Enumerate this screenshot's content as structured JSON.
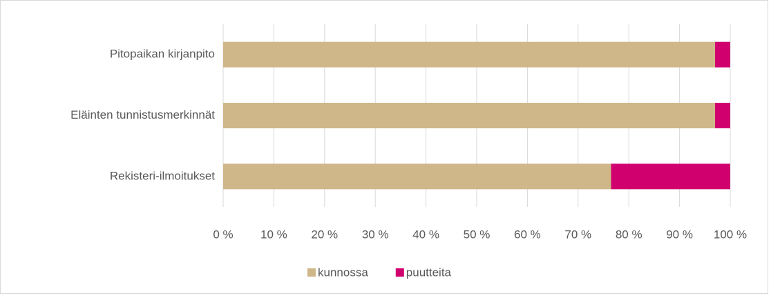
{
  "chart_data": {
    "type": "stacked_barh",
    "categories": [
      "Pitopaikan kirjanpito",
      "Eläinten tunnistusmerkinnät",
      "Rekisteri-ilmoitukset"
    ],
    "series": [
      {
        "name": "kunnossa",
        "color": "#cfb78a",
        "values": [
          97,
          97,
          76.5
        ]
      },
      {
        "name": "puutteita",
        "color": "#d0006f",
        "values": [
          3,
          3,
          23.5
        ]
      }
    ],
    "xlim": [
      0,
      100
    ],
    "xticks": [
      {
        "value": 0,
        "label": "0 %"
      },
      {
        "value": 10,
        "label": "10 %"
      },
      {
        "value": 20,
        "label": "20 %"
      },
      {
        "value": 30,
        "label": "30 %"
      },
      {
        "value": 40,
        "label": "40 %"
      },
      {
        "value": 50,
        "label": "50 %"
      },
      {
        "value": 60,
        "label": "60 %"
      },
      {
        "value": 70,
        "label": "70 %"
      },
      {
        "value": 80,
        "label": "80 %"
      },
      {
        "value": 90,
        "label": "90 %"
      },
      {
        "value": 100,
        "label": "100 %"
      }
    ],
    "grid": true,
    "legend": "bottom"
  }
}
